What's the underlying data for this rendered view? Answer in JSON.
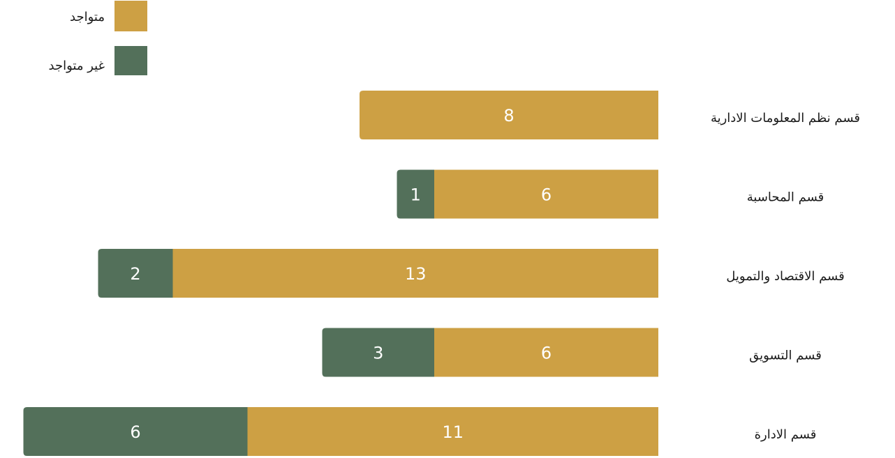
{
  "chart_data": {
    "type": "bar",
    "orientation": "horizontal",
    "stacked": true,
    "direction": "rtl",
    "categories": [
      "قسم نظم المعلومات الادارية",
      "قسم المحاسبة",
      "قسم الاقتصاد والتمويل",
      "قسم التسويق",
      "قسم الادارة"
    ],
    "series": [
      {
        "name": "متواجد",
        "color": "#CDA044",
        "values": [
          8,
          6,
          13,
          6,
          11
        ]
      },
      {
        "name": "غير متواجد",
        "color": "#53705A",
        "values": [
          0,
          1,
          2,
          3,
          6
        ]
      }
    ],
    "legend_position": "top-left",
    "grid": false,
    "axes_visible": false
  }
}
